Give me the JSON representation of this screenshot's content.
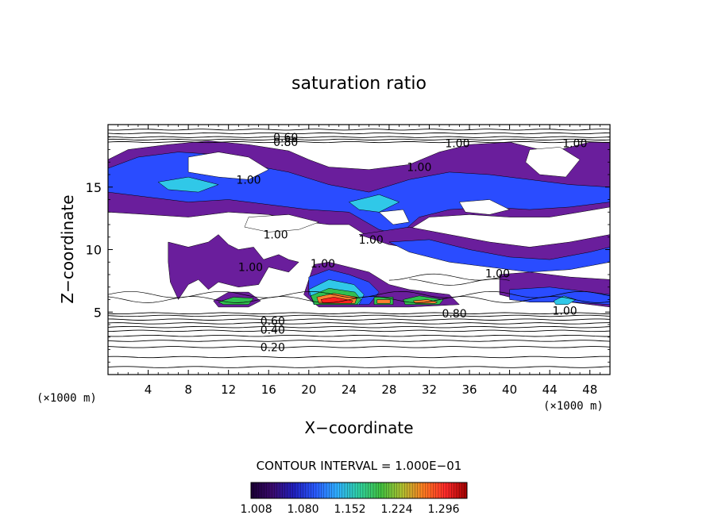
{
  "chart_data": {
    "type": "heatmap",
    "title": "saturation ratio",
    "xlabel": "X−coordinate",
    "ylabel": "Z−coordinate",
    "x_unit_label": "(×1000 m)",
    "y_unit_label": "(×1000 m)",
    "xlim": [
      0,
      50
    ],
    "ylim": [
      0,
      20
    ],
    "x_ticks": [
      4,
      8,
      12,
      16,
      20,
      24,
      28,
      32,
      36,
      40,
      44,
      48
    ],
    "y_ticks": [
      5,
      10,
      15
    ],
    "contour_interval_label": "CONTOUR INTERVAL = 1.000E−01",
    "contour_labels": [
      {
        "text": "0.60",
        "x": 17.7,
        "y": 19.0
      },
      {
        "text": "0.80",
        "x": 17.7,
        "y": 18.6
      },
      {
        "text": "1.00",
        "x": 34.8,
        "y": 18.5
      },
      {
        "text": "1.00",
        "x": 46.5,
        "y": 18.5
      },
      {
        "text": "1.00",
        "x": 31.0,
        "y": 16.6
      },
      {
        "text": "1.00",
        "x": 14.0,
        "y": 15.6
      },
      {
        "text": "1.00",
        "x": 16.7,
        "y": 11.2
      },
      {
        "text": "1.00",
        "x": 26.2,
        "y": 10.8
      },
      {
        "text": "1.00",
        "x": 14.2,
        "y": 8.6
      },
      {
        "text": "1.00",
        "x": 21.4,
        "y": 8.9
      },
      {
        "text": "1.00",
        "x": 38.8,
        "y": 8.1
      },
      {
        "text": "1.00",
        "x": 45.5,
        "y": 5.1
      },
      {
        "text": "0.80",
        "x": 34.5,
        "y": 4.9
      },
      {
        "text": "0.60",
        "x": 16.4,
        "y": 4.3
      },
      {
        "text": "0.40",
        "x": 16.4,
        "y": 3.6
      },
      {
        "text": "0.20",
        "x": 16.4,
        "y": 2.2
      }
    ],
    "colorbar": {
      "range": [
        1.0,
        1.332
      ],
      "tick_values": [
        1.008,
        1.08,
        1.152,
        1.224,
        1.296
      ],
      "tick_labels": [
        "1.008",
        "1.080",
        "1.152",
        "1.224",
        "1.296"
      ],
      "palette": [
        "#1a0033",
        "#3a0a6e",
        "#2020c0",
        "#2a5cff",
        "#2fb0ff",
        "#2fd0a0",
        "#40c040",
        "#b0c030",
        "#ff7a20",
        "#ff2a2a",
        "#a00000"
      ]
    },
    "fill_colors": {
      "purple": "#6a1e9c",
      "blue": "#2a4cff",
      "cyan": "#30c8e8",
      "green": "#30c050",
      "orange": "#ff8030",
      "red": "#ff2020"
    },
    "contour_levels": [
      0.1,
      0.2,
      0.3,
      0.4,
      0.5,
      0.6,
      0.7,
      0.8,
      0.9,
      1.0
    ]
  }
}
